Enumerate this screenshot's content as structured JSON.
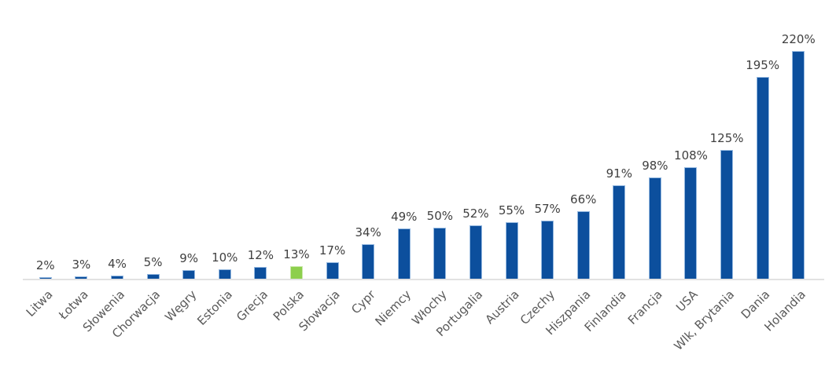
{
  "chart": {
    "colors": {
      "bar": "#0C4F9D",
      "bar_border": "#94B8E0",
      "highlight": "#8DCF4D",
      "highlight_border": "#C9E8A9",
      "axis_line": "#E2E2E2",
      "value_label": "#404040",
      "category_label": "#595959",
      "background": "#FFFFFF"
    }
  },
  "chart_data": {
    "type": "bar",
    "title": "",
    "xlabel": "",
    "ylabel": "",
    "grid": false,
    "legend": false,
    "y_axis_visible": false,
    "data_labels_position": "above-bar",
    "category_label_rotation_deg": 45,
    "ylim": [
      0,
      220
    ],
    "highlight_index": 7,
    "highlight_category": "Polska",
    "categories": [
      "Litwa",
      "Łotwa",
      "Słowenia",
      "Chorwacja",
      "Węgry",
      "Estonia",
      "Grecja",
      "Polska",
      "Słowacja",
      "Cypr",
      "Niemcy",
      "Włochy",
      "Portugalia",
      "Austria",
      "Czechy",
      "Hiszpania",
      "Finlandia",
      "Francja",
      "USA",
      "Wlk, Brytania",
      "Dania",
      "Holandia"
    ],
    "values": [
      2,
      3,
      4,
      5,
      9,
      10,
      12,
      13,
      17,
      34,
      49,
      50,
      52,
      55,
      57,
      66,
      91,
      98,
      108,
      125,
      195,
      220
    ],
    "value_labels": [
      "2%",
      "3%",
      "4%",
      "5%",
      "9%",
      "10%",
      "12%",
      "13%",
      "17%",
      "34%",
      "49%",
      "50%",
      "52%",
      "55%",
      "57%",
      "66%",
      "91%",
      "98%",
      "108%",
      "125%",
      "195%",
      "220%"
    ]
  }
}
